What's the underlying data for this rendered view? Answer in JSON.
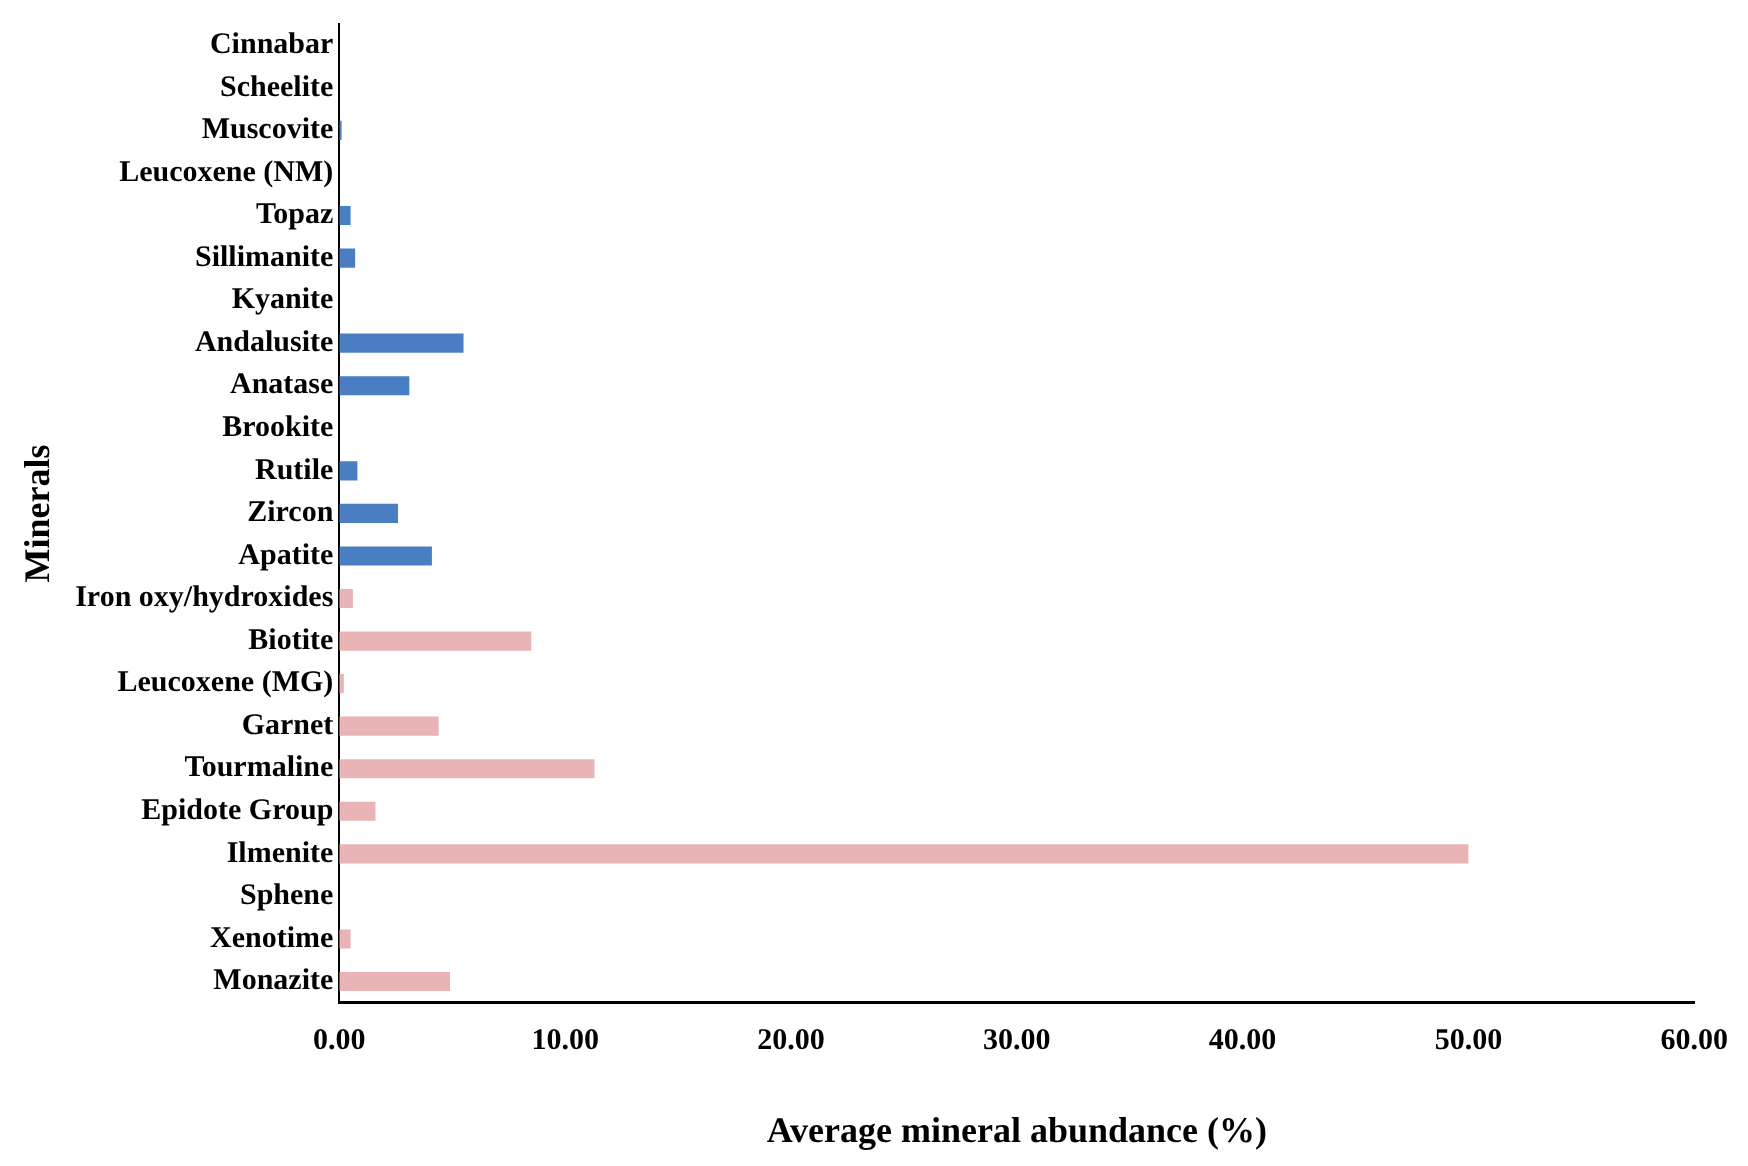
{
  "chart_data": {
    "type": "bar",
    "orientation": "horizontal",
    "xlabel": "Average mineral abundance (%)",
    "ylabel": "Minerals",
    "categories": [
      "Cinnabar",
      "Scheelite",
      "Muscovite",
      "Leucoxene (NM)",
      "Topaz",
      "Sillimanite",
      "Kyanite",
      "Andalusite",
      "Anatase",
      "Brookite",
      "Rutile",
      "Zircon",
      "Apatite",
      "Iron oxy/hydroxides",
      "Biotite",
      "Leucoxene (MG)",
      "Garnet",
      "Tourmaline",
      "Epidote Group",
      "Ilmenite",
      "Sphene",
      "Xenotime",
      "Monazite"
    ],
    "values": [
      0,
      0,
      0.1,
      0,
      0.5,
      0.7,
      0,
      5.5,
      3.1,
      0,
      0.8,
      2.6,
      4.1,
      0.6,
      8.5,
      0.2,
      4.4,
      11.3,
      1.6,
      50.0,
      0,
      0.5,
      4.9
    ],
    "colors": [
      "#4a7ec3",
      "#4a7ec3",
      "#4a7ec3",
      "#4a7ec3",
      "#4a7ec3",
      "#4a7ec3",
      "#4a7ec3",
      "#4a7ec3",
      "#4a7ec3",
      "#4a7ec3",
      "#4a7ec3",
      "#4a7ec3",
      "#4a7ec3",
      "#e8b4b5",
      "#e8b4b5",
      "#e8b4b5",
      "#e8b4b5",
      "#e8b4b5",
      "#e8b4b5",
      "#e8b4b5",
      "#e8b4b5",
      "#e8b4b5",
      "#e8b4b5"
    ],
    "xlim": [
      0,
      60
    ],
    "xticks": [
      {
        "value": 0,
        "label": "0.00"
      },
      {
        "value": 10,
        "label": "10.00"
      },
      {
        "value": 20,
        "label": "20.00"
      },
      {
        "value": 30,
        "label": "30.00"
      },
      {
        "value": 40,
        "label": "40.00"
      },
      {
        "value": 50,
        "label": "50.00"
      },
      {
        "value": 60,
        "label": "60.00"
      }
    ],
    "grid": false,
    "legend": false
  }
}
